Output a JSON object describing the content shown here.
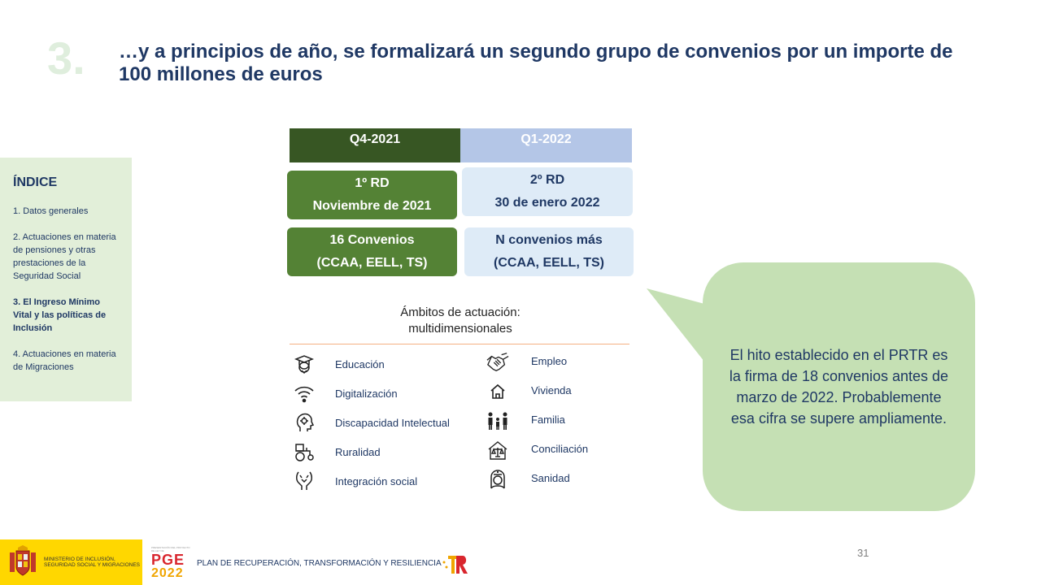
{
  "section_number": "3.",
  "title": "…y a principios de año, se formalizará un segundo grupo de convenios por un importe de 100 millones de euros",
  "index": {
    "heading": "ÍNDICE",
    "items": [
      {
        "label": "1. Datos generales",
        "active": false
      },
      {
        "label": "2. Actuaciones en materia de pensiones y otras prestaciones de la Seguridad Social",
        "active": false
      },
      {
        "label": "3. El Ingreso Mínimo Vital y las políticas de Inclusión",
        "active": true
      },
      {
        "label": "4. Actuaciones en materia de Migraciones",
        "active": false
      }
    ]
  },
  "timeline": {
    "q4_header": "Q4-2021",
    "q1_header": "Q1-2022",
    "rd1_line1": "1º RD",
    "rd1_line2": "Noviembre de 2021",
    "rd2_line1": "2º RD",
    "rd2_line2": "30 de enero 2022",
    "conv1_line1": "16 Convenios",
    "conv1_line2": "(CCAA, EELL, TS)",
    "conv2_line1": "N convenios más",
    "conv2_line2": "(CCAA, EELL, TS)",
    "colors": {
      "dark_green": "#375623",
      "green": "#548235",
      "light_blue": "#b4c6e7",
      "pale_blue": "#deebf7"
    }
  },
  "ambitos": {
    "title_line1": "Ámbitos de actuación:",
    "title_line2": "multidimensionales",
    "left": [
      {
        "label": "Educación",
        "icon": "graduate-icon"
      },
      {
        "label": "Digitalización",
        "icon": "wifi-icon"
      },
      {
        "label": "Discapacidad Intelectual",
        "icon": "head-gear-icon"
      },
      {
        "label": "Ruralidad",
        "icon": "tractor-icon"
      },
      {
        "label": "Integración social",
        "icon": "hands-icon"
      }
    ],
    "right": [
      {
        "label": "Empleo",
        "icon": "handshake-icon"
      },
      {
        "label": "Vivienda",
        "icon": "house-icon"
      },
      {
        "label": "Familia",
        "icon": "family-icon"
      },
      {
        "label": "Conciliación",
        "icon": "house-scale-icon"
      },
      {
        "label": "Sanidad",
        "icon": "nurse-icon"
      }
    ]
  },
  "callout": {
    "text": "El hito establecido en el PRTR es la firma de 18 convenios antes de marzo de 2022. Probablemente esa cifra se supere ampliamente.",
    "color": "#c5e0b4"
  },
  "footer": {
    "ministry": "MINISTERIO DE INCLUSIÓN, SEGURIDAD SOCIAL Y MIGRACIONES",
    "pge_caption": "PRESENTACIÓN DEL PROYECTO DE LEY DE",
    "pge": "PGE",
    "pge_year": "2022",
    "plan": "PLAN DE RECUPERACIÓN, TRANSFORMACIÓN Y RESILIENCIA",
    "page_number": "31"
  }
}
